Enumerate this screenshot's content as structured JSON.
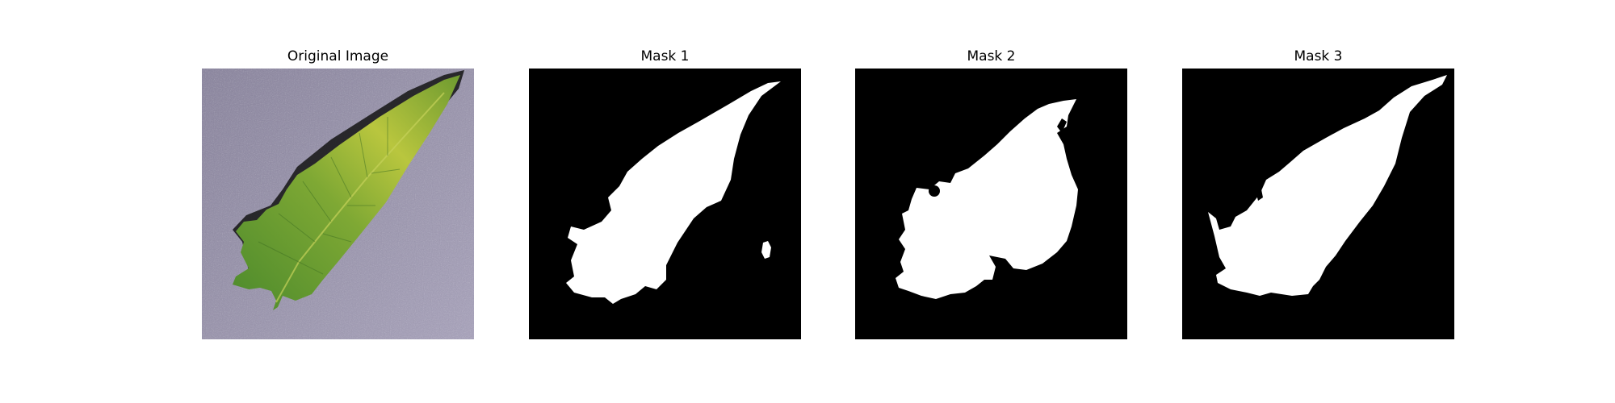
{
  "panels": [
    {
      "title": "Original Image"
    },
    {
      "title": "Mask 1"
    },
    {
      "title": "Mask 2"
    },
    {
      "title": "Mask 3"
    }
  ],
  "colors": {
    "background": "#ffffff",
    "mask_bg": "#000000",
    "mask_fg": "#ffffff",
    "surface": "#8a86a0",
    "leaf_dark": "#4f8a2c",
    "leaf_light": "#a8c23a",
    "shadow": "#1a1a1a"
  }
}
